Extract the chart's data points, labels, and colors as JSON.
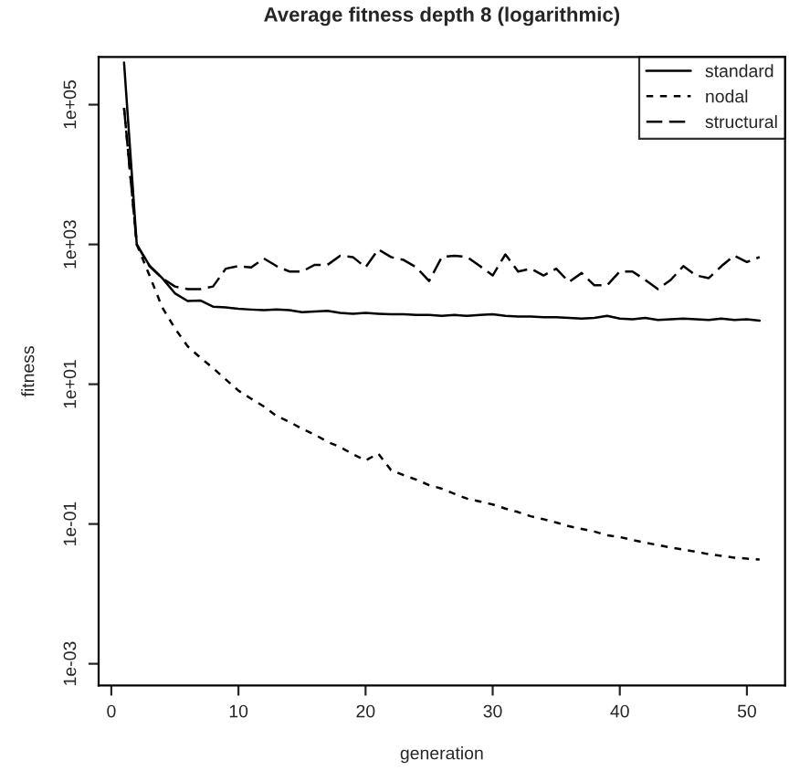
{
  "chart_data": {
    "type": "line",
    "title": "Average fitness depth 8 (logarithmic)",
    "xlabel": "generation",
    "ylabel": "fitness",
    "x": [
      1,
      2,
      3,
      4,
      5,
      6,
      7,
      8,
      9,
      10,
      11,
      12,
      13,
      14,
      15,
      16,
      17,
      18,
      19,
      20,
      21,
      22,
      23,
      24,
      25,
      26,
      27,
      28,
      29,
      30,
      31,
      32,
      33,
      34,
      35,
      36,
      37,
      38,
      39,
      40,
      41,
      42,
      43,
      44,
      45,
      46,
      47,
      48,
      49,
      50,
      51
    ],
    "series": [
      {
        "name": "standard",
        "color": "#000000",
        "line_style": "solid",
        "values": [
          400000,
          1000,
          500,
          330,
          200,
          155,
          158,
          129,
          126,
          120,
          117,
          115,
          117,
          115,
          107,
          110,
          112,
          105,
          102,
          105,
          102,
          100,
          100,
          98,
          98,
          95,
          98,
          95,
          98,
          100,
          95,
          93,
          93,
          91,
          91,
          89,
          87,
          89,
          95,
          87,
          85,
          89,
          83,
          85,
          87,
          85,
          83,
          87,
          83,
          85,
          81
        ]
      },
      {
        "name": "nodal",
        "color": "#000000",
        "line_style": "dotted",
        "values": [
          90000,
          1000,
          360,
          126,
          63,
          35,
          24,
          17,
          11.7,
          8.1,
          6.2,
          4.8,
          3.5,
          2.9,
          2.3,
          1.9,
          1.5,
          1.26,
          1.0,
          0.81,
          1.02,
          0.59,
          0.5,
          0.43,
          0.36,
          0.32,
          0.27,
          0.23,
          0.21,
          0.19,
          0.166,
          0.148,
          0.129,
          0.117,
          0.105,
          0.093,
          0.085,
          0.078,
          0.069,
          0.065,
          0.059,
          0.054,
          0.05,
          0.046,
          0.043,
          0.04,
          0.037,
          0.035,
          0.033,
          0.032,
          0.031
        ]
      },
      {
        "name": "structural",
        "color": "#000000",
        "line_style": "dashed",
        "values": [
          90000,
          1000,
          490,
          330,
          250,
          230,
          230,
          250,
          450,
          490,
          470,
          630,
          490,
          410,
          410,
          510,
          510,
          690,
          660,
          470,
          850,
          660,
          600,
          470,
          300,
          660,
          690,
          660,
          490,
          360,
          720,
          410,
          450,
          360,
          450,
          290,
          390,
          260,
          260,
          410,
          410,
          310,
          230,
          310,
          490,
          360,
          330,
          490,
          690,
          560,
          660
        ]
      }
    ],
    "log": "y",
    "xlim": [
      -1,
      53
    ],
    "ylim": [
      0.00049,
      480000
    ],
    "xticks": [
      0,
      10,
      20,
      30,
      40,
      50
    ],
    "yticks": [
      {
        "value": 0.001,
        "label": "1e-03"
      },
      {
        "value": 0.1,
        "label": "1e-01"
      },
      {
        "value": 10,
        "label": "1e+01"
      },
      {
        "value": 1000,
        "label": "1e+03"
      },
      {
        "value": 100000,
        "label": "1e+05"
      }
    ],
    "grid": false,
    "legend": "top right"
  }
}
